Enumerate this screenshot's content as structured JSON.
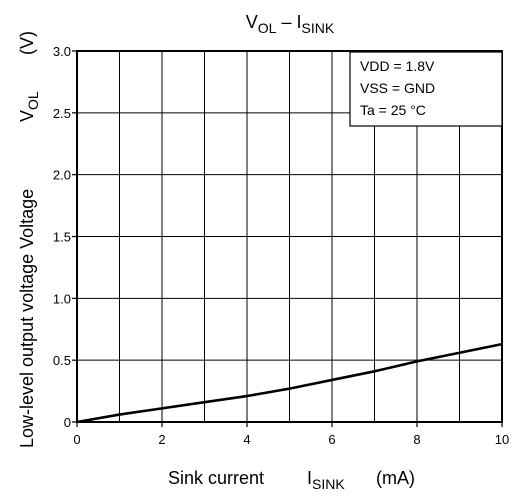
{
  "chart_data": {
    "type": "line",
    "title": {
      "main_v": "V",
      "main_v_sub": "OL",
      "dash": " – ",
      "main_i": "I",
      "main_i_sub": "SINK"
    },
    "xlabel": {
      "text": "Sink current",
      "sym": "I",
      "sym_sub": "SINK",
      "unit": "(mA)"
    },
    "ylabel": {
      "text": "Low-level output voltage Voltage",
      "sym": "V",
      "sym_sub": "OL",
      "unit": "(V)"
    },
    "xlim": [
      0,
      10
    ],
    "ylim": [
      0,
      3.0
    ],
    "x_ticks": [
      0,
      2,
      4,
      6,
      8,
      10
    ],
    "x_tick_labels": [
      "0",
      "2",
      "4",
      "6",
      "8",
      "10"
    ],
    "y_ticks": [
      0,
      0.5,
      1.0,
      1.5,
      2.0,
      2.5,
      3.0
    ],
    "y_tick_labels": [
      "0",
      "0.5",
      "1.0",
      "1.5",
      "2.0",
      "2.5",
      "3.0"
    ],
    "x_grid_step": 1,
    "y_grid_step": 0.5,
    "grid": true,
    "legend_position": "top-right",
    "annotations": [
      "VDD = 1.8V",
      "VSS = GND",
      "Ta = 25 °C"
    ],
    "series": [
      {
        "x": [
          0,
          1,
          2,
          3,
          4,
          5,
          6,
          7,
          8,
          9,
          10
        ],
        "y": [
          0.0,
          0.06,
          0.11,
          0.16,
          0.21,
          0.27,
          0.34,
          0.41,
          0.49,
          0.56,
          0.63
        ]
      }
    ],
    "colors": {
      "line": "#000000",
      "grid": "#000000",
      "background": "#ffffff"
    }
  }
}
